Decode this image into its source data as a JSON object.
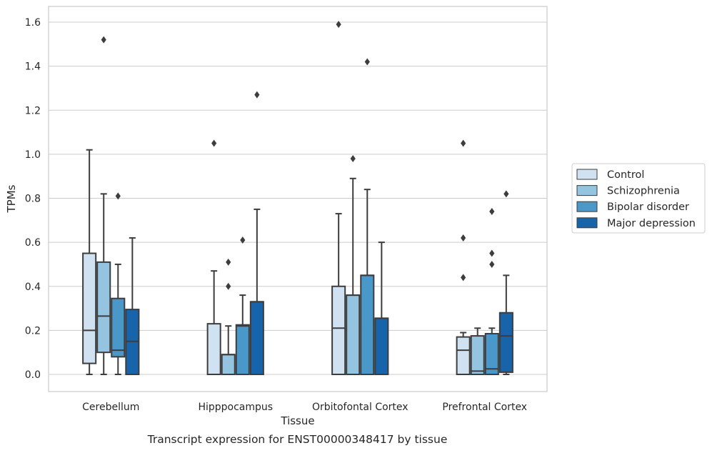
{
  "caption": "Transcript expression for ENST00000348417 by tissue",
  "chart_data": {
    "type": "box",
    "xlabel": "Tissue",
    "ylabel": "TPMs",
    "ylim": [
      -0.08,
      1.67
    ],
    "yticks": [
      "0.0",
      "0.2",
      "0.4",
      "0.6",
      "0.8",
      "1.0",
      "1.2",
      "1.4",
      "1.6"
    ],
    "ytick_values": [
      0.0,
      0.2,
      0.4,
      0.6,
      0.8,
      1.0,
      1.2,
      1.4,
      1.6
    ],
    "grid": true,
    "legend_position": "right",
    "categories": [
      "Cerebellum",
      "Hipppocampus",
      "Orbitofontal Cortex",
      "Prefrontal Cortex"
    ],
    "series": [
      {
        "name": "Control",
        "color": "#d0e1f2",
        "boxes": [
          {
            "whislo": 0.0,
            "q1": 0.05,
            "median": 0.2,
            "q3": 0.55,
            "whishi": 1.02,
            "fliers": []
          },
          {
            "whislo": 0.0,
            "q1": 0.0,
            "median": 0.0,
            "q3": 0.23,
            "whishi": 0.47,
            "fliers": [
              1.05
            ]
          },
          {
            "whislo": 0.0,
            "q1": 0.0,
            "median": 0.21,
            "q3": 0.4,
            "whishi": 0.73,
            "fliers": [
              1.59
            ]
          },
          {
            "whislo": 0.0,
            "q1": 0.0,
            "median": 0.11,
            "q3": 0.17,
            "whishi": 0.19,
            "fliers": [
              0.44,
              0.62,
              1.05
            ]
          }
        ]
      },
      {
        "name": "Schizophrenia",
        "color": "#94c4df",
        "boxes": [
          {
            "whislo": 0.0,
            "q1": 0.1,
            "median": 0.265,
            "q3": 0.51,
            "whishi": 0.82,
            "fliers": [
              1.52
            ]
          },
          {
            "whislo": 0.0,
            "q1": 0.0,
            "median": 0.09,
            "q3": 0.09,
            "whishi": 0.22,
            "fliers": [
              0.4,
              0.51
            ]
          },
          {
            "whislo": 0.0,
            "q1": 0.0,
            "median": 0.36,
            "q3": 0.36,
            "whishi": 0.89,
            "fliers": [
              0.98
            ]
          },
          {
            "whislo": 0.0,
            "q1": 0.0,
            "median": 0.015,
            "q3": 0.175,
            "whishi": 0.21,
            "fliers": []
          }
        ]
      },
      {
        "name": "Bipolar disorder",
        "color": "#4a98c9",
        "boxes": [
          {
            "whislo": 0.0,
            "q1": 0.08,
            "median": 0.11,
            "q3": 0.345,
            "whishi": 0.5,
            "fliers": [
              0.81
            ]
          },
          {
            "whislo": 0.0,
            "q1": 0.0,
            "median": 0.22,
            "q3": 0.225,
            "whishi": 0.36,
            "fliers": [
              0.61
            ]
          },
          {
            "whislo": 0.0,
            "q1": 0.0,
            "median": 0.45,
            "q3": 0.45,
            "whishi": 0.84,
            "fliers": [
              1.42
            ]
          },
          {
            "whislo": 0.0,
            "q1": 0.0,
            "median": 0.025,
            "q3": 0.185,
            "whishi": 0.21,
            "fliers": [
              0.5,
              0.55,
              0.74
            ]
          }
        ]
      },
      {
        "name": "Major depression",
        "color": "#1764ab",
        "boxes": [
          {
            "whislo": 0.0,
            "q1": 0.0,
            "median": 0.15,
            "q3": 0.295,
            "whishi": 0.62,
            "fliers": []
          },
          {
            "whislo": 0.0,
            "q1": 0.0,
            "median": 0.33,
            "q3": 0.33,
            "whishi": 0.75,
            "fliers": [
              1.27
            ]
          },
          {
            "whislo": 0.0,
            "q1": 0.0,
            "median": 0.255,
            "q3": 0.255,
            "whishi": 0.6,
            "fliers": []
          },
          {
            "whislo": 0.0,
            "q1": 0.01,
            "median": 0.175,
            "q3": 0.28,
            "whishi": 0.45,
            "fliers": [
              0.82
            ]
          }
        ]
      }
    ]
  }
}
